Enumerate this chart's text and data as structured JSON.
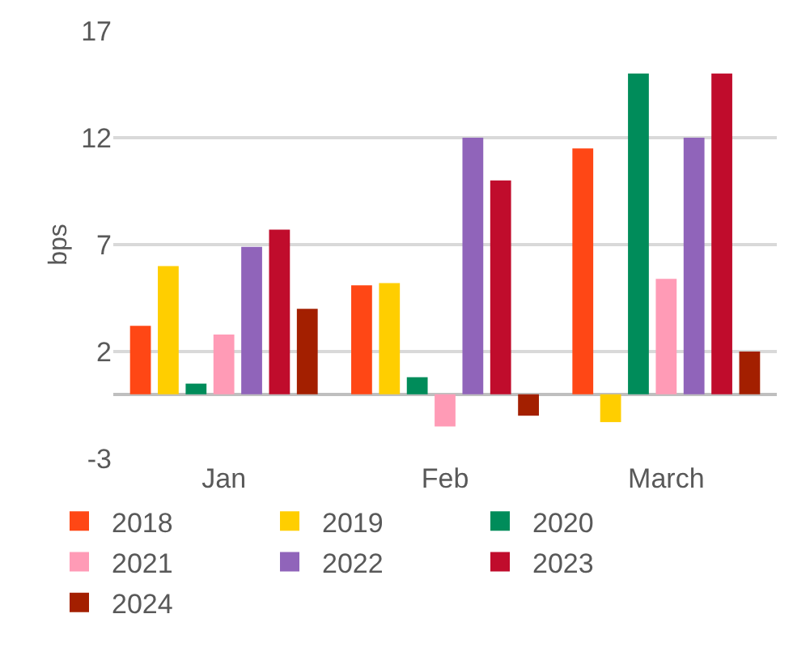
{
  "chart_data": {
    "type": "bar",
    "ylabel": "bps",
    "categories": [
      "Jan",
      "Feb",
      "March"
    ],
    "series": [
      {
        "name": "2018",
        "color": "#ff4715",
        "values": [
          3.2,
          5.1,
          11.5
        ]
      },
      {
        "name": "2019",
        "color": "#ffce00",
        "values": [
          6.0,
          5.2,
          -1.3
        ]
      },
      {
        "name": "2020",
        "color": "#008c5a",
        "values": [
          0.5,
          0.8,
          15.0
        ]
      },
      {
        "name": "2021",
        "color": "#ff9bb6",
        "values": [
          2.8,
          -1.5,
          5.4
        ]
      },
      {
        "name": "2022",
        "color": "#9064ba",
        "values": [
          6.9,
          12.0,
          12.0
        ]
      },
      {
        "name": "2023",
        "color": "#c00c2c",
        "values": [
          7.7,
          10.0,
          15.0
        ]
      },
      {
        "name": "2024",
        "color": "#a31f00",
        "values": [
          4.0,
          -1.0,
          2.0
        ]
      }
    ],
    "ylim": [
      -3,
      17
    ],
    "yticks": [
      -3,
      2,
      7,
      12,
      17
    ],
    "grid": "y",
    "legend": "bottom"
  }
}
